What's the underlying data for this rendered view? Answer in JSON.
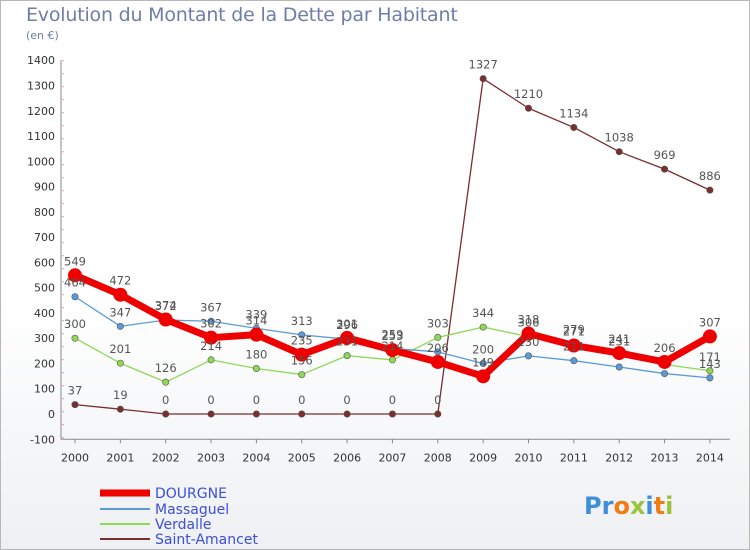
{
  "title": "Evolution du Montant de la Dette par Habitant",
  "subtitle": "(en €)",
  "logo": {
    "text": "Proxiti",
    "letters": [
      "P",
      "r",
      "o",
      "x",
      "i",
      "t",
      "i"
    ],
    "colors": [
      "#3c8fd8",
      "#3c8fd8",
      "#f07d14",
      "#9bc33b",
      "#3c8fd8",
      "#f07d14",
      "#9bc33b"
    ]
  },
  "chart_data": {
    "type": "line",
    "x": [
      "2000",
      "2001",
      "2002",
      "2003",
      "2004",
      "2005",
      "2006",
      "2007",
      "2008",
      "2009",
      "2010",
      "2011",
      "2012",
      "2013",
      "2014"
    ],
    "ylim": [
      -100,
      1400
    ],
    "yticks": [
      "-100",
      "0",
      "100",
      "200",
      "300",
      "400",
      "500",
      "600",
      "700",
      "800",
      "900",
      "1000",
      "1100",
      "1200",
      "1300",
      "1400"
    ],
    "grid": false,
    "legend_position": "bottom-left",
    "series": [
      {
        "name": "DOURGNE",
        "color": "#ee0000",
        "values": [
          549,
          472,
          374,
          302,
          314,
          235,
          301,
          253,
          206,
          149,
          318,
          271,
          241,
          206,
          307
        ],
        "labels": [
          "549",
          "472",
          "374",
          "302",
          "314",
          "235",
          "301",
          "253",
          "206",
          "149",
          "318",
          "271",
          "241",
          "206",
          "307"
        ]
      },
      {
        "name": "Massaguel",
        "color": "#5b9bd5",
        "values": [
          464,
          347,
          372,
          367,
          339,
          313,
          296,
          259,
          246,
          200,
          230,
          211,
          186,
          160,
          143
        ],
        "labels": [
          "464",
          "347",
          "372",
          "367",
          "339",
          "313",
          "296",
          "259",
          "",
          "200",
          "230",
          "211",
          "",
          "",
          "143"
        ]
      },
      {
        "name": "Verdalle",
        "color": "#8fd855",
        "values": [
          300,
          201,
          126,
          214,
          180,
          156,
          231,
          214,
          303,
          344,
          306,
          279,
          231,
          196,
          171
        ],
        "labels": [
          "300",
          "201",
          "126",
          "214",
          "180",
          "156",
          "231",
          "214",
          "303",
          "344",
          "306",
          "279",
          "231",
          "",
          "171"
        ]
      },
      {
        "name": "Saint-Amancet",
        "color": "#7a2e2e",
        "values": [
          37,
          19,
          0,
          0,
          0,
          0,
          0,
          0,
          0,
          1327,
          1210,
          1134,
          1038,
          969,
          886
        ],
        "labels": [
          "37",
          "19",
          "0",
          "0",
          "0",
          "0",
          "0",
          "0",
          "0",
          "1327",
          "1210",
          "1134",
          "1038",
          "969",
          "886"
        ]
      }
    ]
  }
}
